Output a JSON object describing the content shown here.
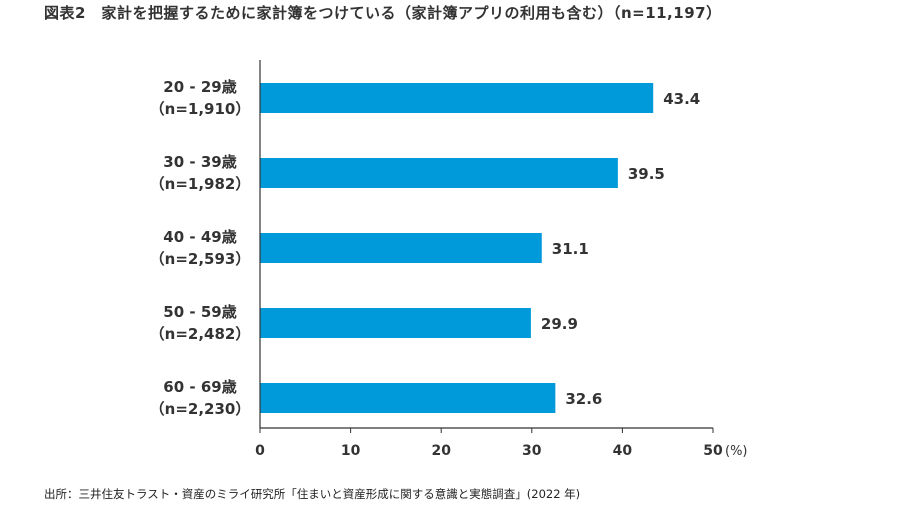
{
  "title": "図表2　家計を把握するために家計簿をつけている（家計簿アプリの利用も含む）（n=11,197）",
  "source": "出所：三井住友トラスト・資産のミライ研究所「住まいと資産形成に関する意識と実態調査」(2022 年)",
  "chart_data": {
    "type": "bar",
    "orientation": "horizontal",
    "categories": [
      {
        "label": "20 - 29歳",
        "n": "（n=1,910）"
      },
      {
        "label": "30 - 39歳",
        "n": "（n=1,982）"
      },
      {
        "label": "40 - 49歳",
        "n": "（n=2,593）"
      },
      {
        "label": "50 - 59歳",
        "n": "（n=2,482）"
      },
      {
        "label": "60 - 69歳",
        "n": "（n=2,230）"
      }
    ],
    "values": [
      43.4,
      39.5,
      31.1,
      29.9,
      32.6
    ],
    "xlim": [
      0,
      50
    ],
    "xticks": [
      0,
      10,
      20,
      30,
      40,
      50
    ],
    "xunit": "(%)",
    "grid": false,
    "bar_color": "#0099d9"
  }
}
